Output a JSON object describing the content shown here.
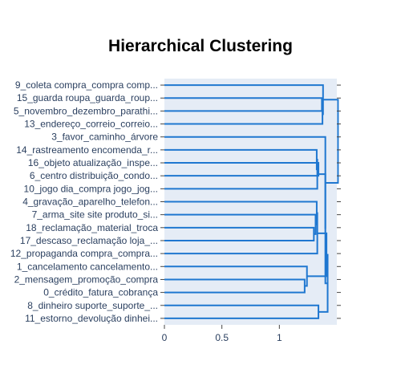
{
  "chart_data": {
    "type": "dendrogram",
    "title": "Hierarchical Clustering",
    "orientation": "left",
    "xlabel": "",
    "ylabel": "",
    "xlim": [
      0,
      1.5
    ],
    "xticks": [
      0,
      0.5,
      1
    ],
    "xtick_labels": [
      "0",
      "0.5",
      "1"
    ],
    "line_color": "#1f77d0",
    "plot_bg": "#e5ecf6",
    "grid": false,
    "leaves": [
      "9_coleta compra_compra comp...",
      "15_guarda roupa_guarda_roup...",
      "5_novembro_dezembro_parathi...",
      "13_endereço_correio_correio...",
      "3_favor_caminho_árvore",
      "14_rastreamento encomenda_r...",
      "16_objeto atualização_inspe...",
      "6_centro distribuição_condo...",
      "10_jogo dia_compra jogo_jog...",
      "4_gravação_aparelho_telefon...",
      "7_arma_site site produto_si...",
      "18_reclamação_material_troca",
      "17_descaso_reclamação loja_...",
      "12_propaganda compra_compra...",
      "1_cancelamento cancelamento...",
      "2_mensagem_promoção_compra",
      "0_crédito_fatura_cobrança",
      "8_dinheiro suporte_suporte_...",
      "11_estorno_devolução dinhei..."
    ],
    "merges": [
      {
        "left": 1,
        "right": 2,
        "height": 1.37
      },
      {
        "left": 3,
        "right": 19,
        "height": 1.375
      },
      {
        "left": 0,
        "right": 20,
        "height": 1.38
      },
      {
        "left": 6,
        "right": 7,
        "height": 1.34
      },
      {
        "left": 5,
        "right": 22,
        "height": 1.325
      },
      {
        "left": 8,
        "right": 23,
        "height": 1.33
      },
      {
        "left": 11,
        "right": 12,
        "height": 1.3
      },
      {
        "left": 10,
        "right": 25,
        "height": 1.315
      },
      {
        "left": 9,
        "right": 26,
        "height": 1.325
      },
      {
        "left": 13,
        "right": 27,
        "height": 1.33
      },
      {
        "left": 15,
        "right": 16,
        "height": 1.22
      },
      {
        "left": 14,
        "right": 29,
        "height": 1.24
      },
      {
        "left": 28,
        "right": 30,
        "height": 1.41
      },
      {
        "left": 17,
        "right": 18,
        "height": 1.34
      },
      {
        "left": 31,
        "right": 32,
        "height": 1.42
      },
      {
        "left": 24,
        "right": 33,
        "height": 1.4
      },
      {
        "left": 4,
        "right": 34,
        "height": 1.4
      },
      {
        "left": 21,
        "right": 35,
        "height": 1.51
      }
    ]
  }
}
